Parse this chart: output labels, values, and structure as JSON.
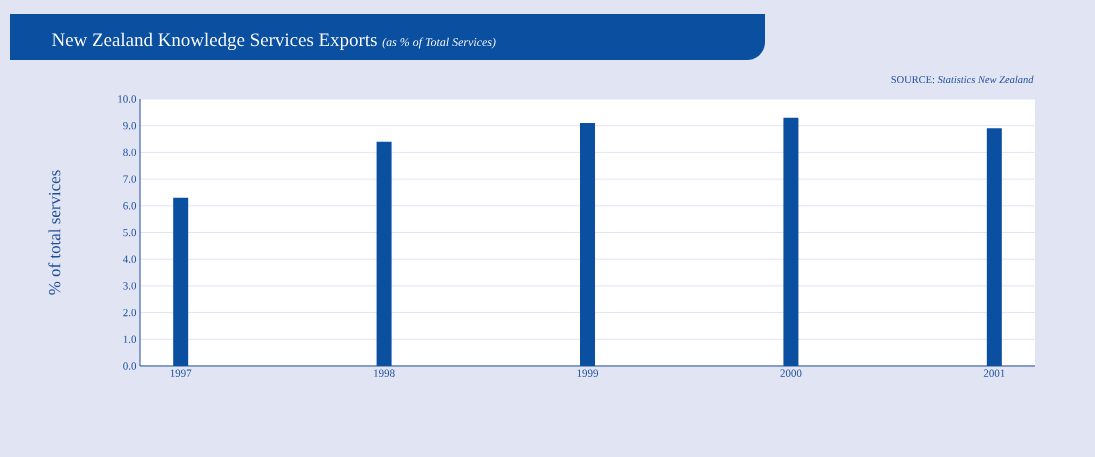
{
  "chart_data": {
    "type": "bar",
    "title": "New Zealand Knowledge Services Exports",
    "subtitle": "(as % of Total Services)",
    "ylabel": "% of total services",
    "annotations": [
      "SOURCE: *Statistics New Zealand*"
    ],
    "categories": [
      "1997",
      "1998",
      "1999",
      "2000",
      "2001"
    ],
    "values": [
      6.3,
      8.4,
      9.1,
      9.3,
      8.9
    ],
    "color": "#0b4fa0",
    "ylim": [
      0,
      10
    ],
    "yticks": [
      {
        "value": 0,
        "label": "0.0"
      },
      {
        "value": 1,
        "label": "1.0"
      },
      {
        "value": 2,
        "label": "2.0"
      },
      {
        "value": 3,
        "label": "3.0"
      },
      {
        "value": 4,
        "label": "4.0"
      },
      {
        "value": 5,
        "label": "5.0"
      },
      {
        "value": 6,
        "label": "6.0"
      },
      {
        "value": 7,
        "label": "7.0"
      },
      {
        "value": 8,
        "label": "8.0"
      },
      {
        "value": 9,
        "label": "9.0"
      },
      {
        "value": 10,
        "label": "10.0"
      }
    ],
    "grid": "y"
  }
}
